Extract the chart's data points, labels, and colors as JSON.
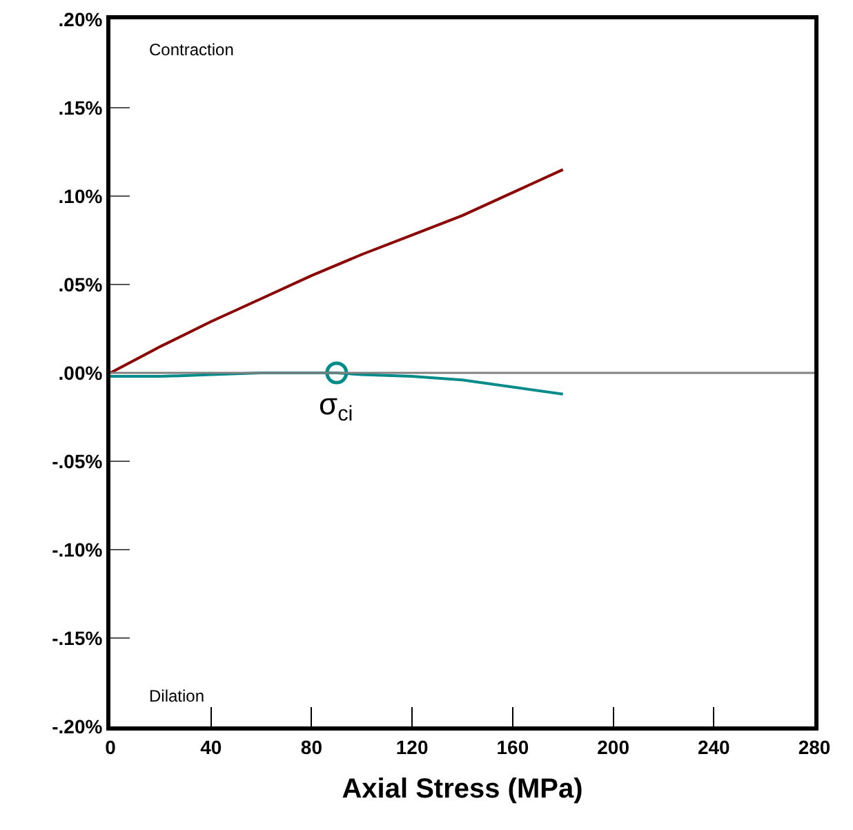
{
  "chart_data": {
    "type": "line",
    "xlabel": "Axial Stress (MPa)",
    "xlim": [
      0,
      280
    ],
    "xticks": [
      0,
      40,
      80,
      120,
      160,
      200,
      240,
      280
    ],
    "ylim": [
      -0.2,
      0.2
    ],
    "yticks": [
      {
        "value": -0.2,
        "label": "-.20%"
      },
      {
        "value": -0.15,
        "label": "-.15%"
      },
      {
        "value": -0.1,
        "label": "-.10%"
      },
      {
        "value": -0.05,
        "label": "-.05%"
      },
      {
        "value": 0,
        "label": ".00%"
      },
      {
        "value": 0.05,
        "label": ".05%"
      },
      {
        "value": 0.1,
        "label": ".10%"
      },
      {
        "value": 0.15,
        "label": ".15%"
      },
      {
        "value": 0.2,
        "label": ".20%"
      }
    ],
    "grid": false,
    "series": [
      {
        "color": "#8b0000",
        "x": [
          0,
          20,
          40,
          60,
          80,
          100,
          120,
          140,
          160,
          180
        ],
        "values": [
          0,
          0.015,
          0.029,
          0.042,
          0.055,
          0.067,
          0.078,
          0.089,
          0.102,
          0.115
        ]
      },
      {
        "color": "#008b8b",
        "x": [
          0,
          20,
          40,
          60,
          80,
          90,
          100,
          120,
          140,
          160,
          180
        ],
        "values": [
          -0.002,
          -0.002,
          -0.001,
          0,
          0,
          0,
          -0.001,
          -0.002,
          -0.004,
          -0.008,
          -0.012
        ]
      },
      {
        "type": "scatter",
        "marker": "circle",
        "color": "#008b8b",
        "x": [
          90
        ],
        "values": [
          0
        ]
      }
    ],
    "ref_lines": [
      {
        "axis": "y",
        "value": 0,
        "color": "#808080"
      }
    ],
    "annotations": [
      "Contraction",
      "Dilation",
      "σ$_{ci}$"
    ]
  }
}
